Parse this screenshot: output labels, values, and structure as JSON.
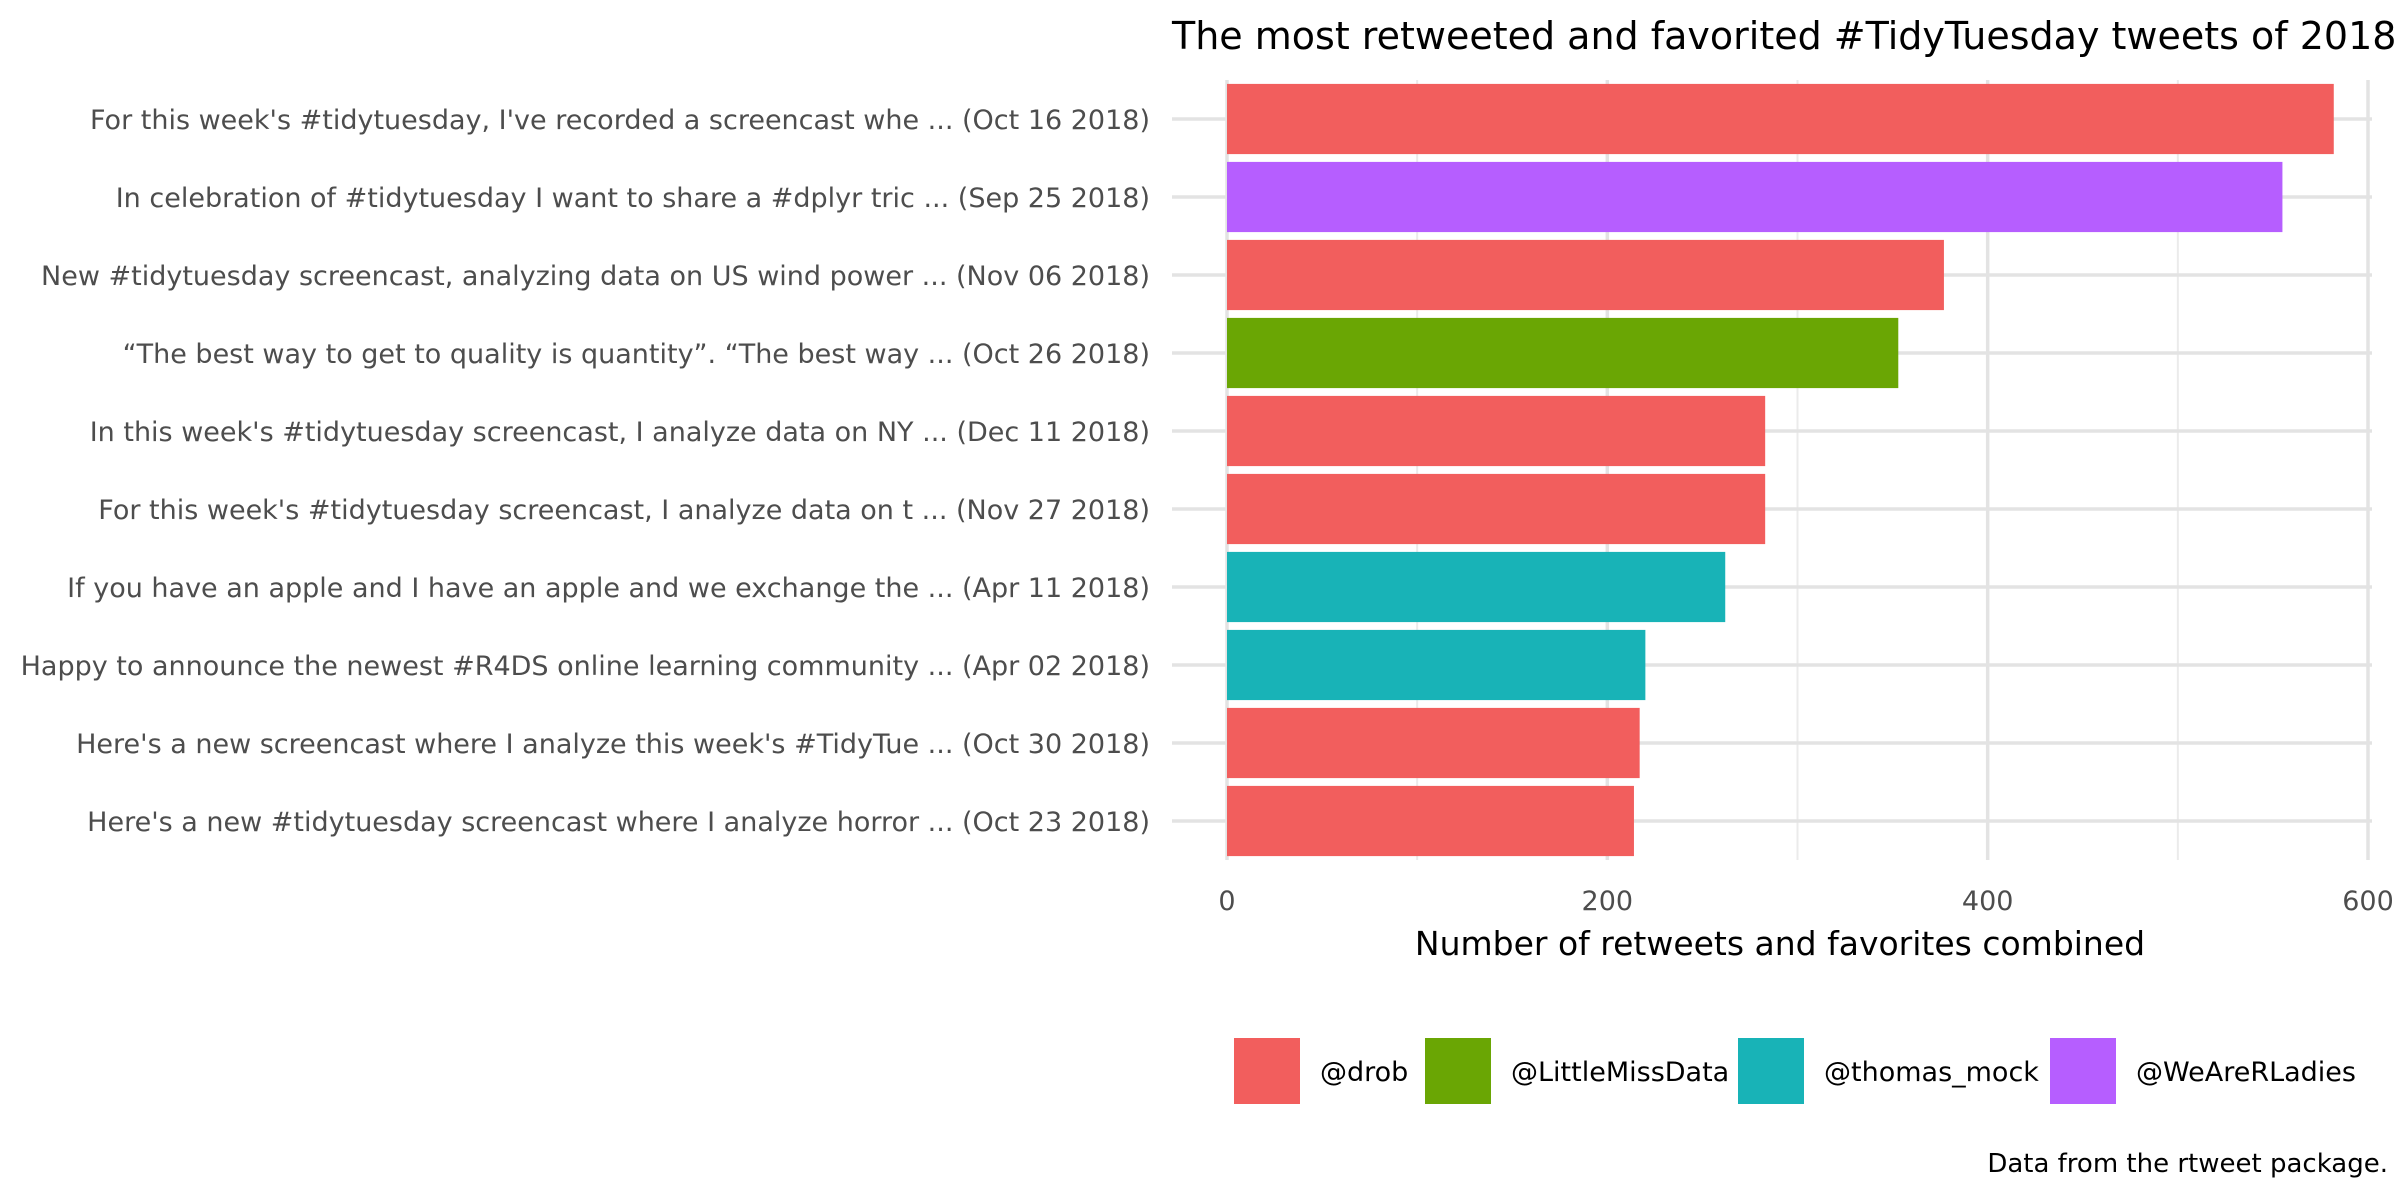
{
  "chart_data": {
    "type": "bar",
    "orientation": "horizontal",
    "title": "The most retweeted and favorited #TidyTuesday tweets of 2018",
    "xlabel": "Number of retweets and favorites combined",
    "ylabel": "",
    "caption": "Data from the rtweet package.",
    "xlim": [
      0,
      600
    ],
    "x_ticks": [
      0,
      200,
      400,
      600
    ],
    "grid": true,
    "legend_position": "bottom",
    "legend": [
      {
        "name": "@drob",
        "color": "#F25E5D"
      },
      {
        "name": "@LittleMissData",
        "color": "#6AA604"
      },
      {
        "name": "@thomas_mock",
        "color": "#18B3B7"
      },
      {
        "name": "@WeAreRLadies",
        "color": "#B65EFF"
      }
    ],
    "bars": [
      {
        "label": "For this week's #tidytuesday, I've recorded a screencast whe ... (Oct 16 2018)",
        "value": 582,
        "account": "@drob"
      },
      {
        "label": "In celebration of #tidytuesday I want to share a #dplyr tric ... (Sep 25 2018)",
        "value": 555,
        "account": "@WeAreRLadies"
      },
      {
        "label": "New #tidytuesday screencast, analyzing data on US wind power ... (Nov 06 2018)",
        "value": 377,
        "account": "@drob"
      },
      {
        "label": "“The best way to get to quality is quantity”. “The best way  ... (Oct 26 2018)",
        "value": 353,
        "account": "@LittleMissData"
      },
      {
        "label": "In this week's #tidytuesday screencast, I analyze data on NY ... (Dec 11 2018)",
        "value": 283,
        "account": "@drob"
      },
      {
        "label": "For this week's #tidytuesday screencast, I analyze data on t ... (Nov 27 2018)",
        "value": 283,
        "account": "@drob"
      },
      {
        "label": "If you have an apple and I have an apple and we exchange the ... (Apr 11 2018)",
        "value": 262,
        "account": "@thomas_mock"
      },
      {
        "label": "Happy to announce the newest #R4DS online learning community ... (Apr 02 2018)",
        "value": 220,
        "account": "@thomas_mock"
      },
      {
        "label": "Here's a new screencast where I analyze this week's #TidyTue ... (Oct 30 2018)",
        "value": 217,
        "account": "@drob"
      },
      {
        "label": "Here's a new #tidytuesday screencast where I analyze horror  ... (Oct 23 2018)",
        "value": 214,
        "account": "@drob"
      }
    ]
  }
}
